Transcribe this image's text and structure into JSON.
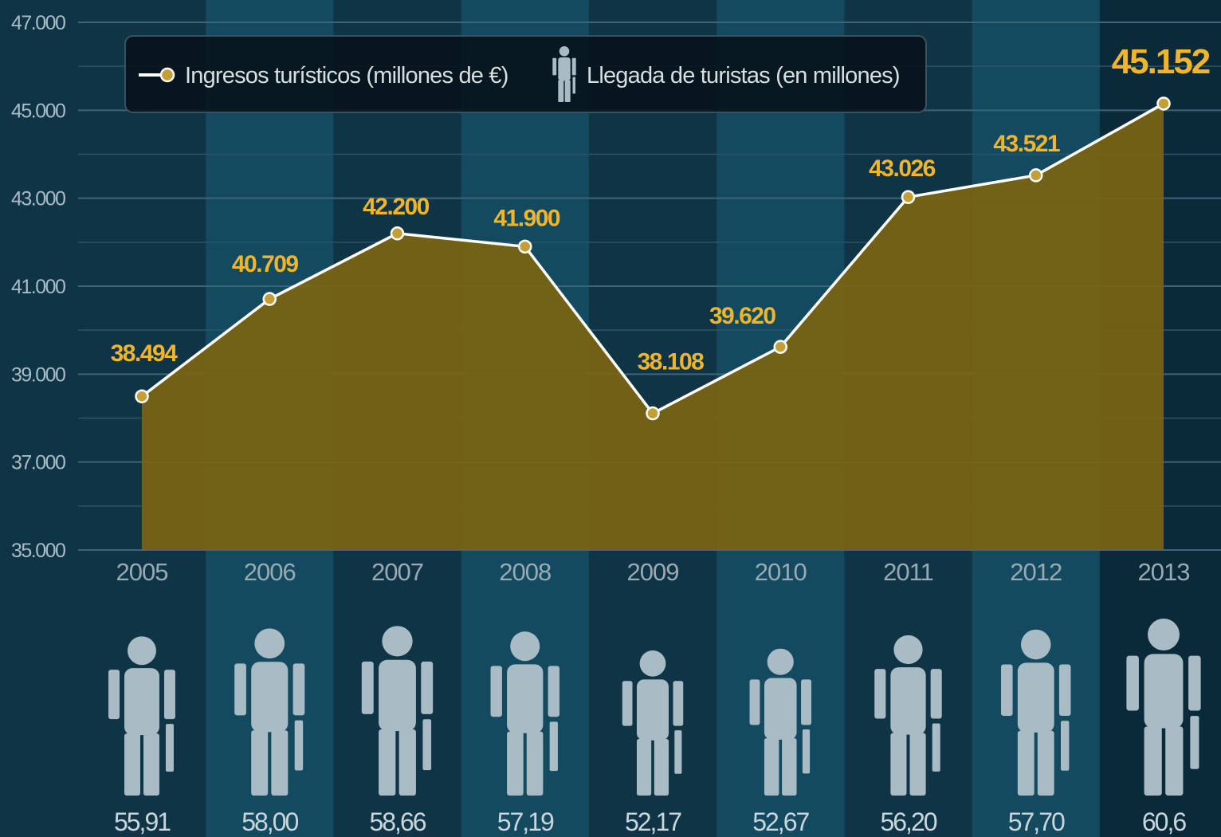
{
  "chart_data": {
    "type": "area",
    "categories": [
      "2005",
      "2006",
      "2007",
      "2008",
      "2009",
      "2010",
      "2011",
      "2012",
      "2013"
    ],
    "series": [
      {
        "name": "Ingresos turísticos (millones de €)",
        "values": [
          38494,
          40709,
          42200,
          41900,
          38108,
          39620,
          43026,
          43521,
          45152
        ],
        "value_labels": [
          "38.494",
          "40.709",
          "42.200",
          "41.900",
          "38.108",
          "39.620",
          "43.026",
          "43.521",
          "45.152"
        ]
      },
      {
        "name": "Llegada de turistas (en millones)",
        "values": [
          55.91,
          58.0,
          58.66,
          57.19,
          52.17,
          52.67,
          56.2,
          57.7,
          60.6
        ],
        "value_labels": [
          "55,91",
          "58,00",
          "58,66",
          "57,19",
          "52,17",
          "52,67",
          "56,20",
          "57,70",
          "60,6"
        ]
      }
    ],
    "yticks": [
      "35.000",
      "37.000",
      "39.000",
      "41.000",
      "43.000",
      "45.000",
      "47.000"
    ],
    "ylim": [
      35000,
      47000
    ],
    "legend": "top",
    "grid": true,
    "highlight_category": "2013"
  },
  "colors": {
    "background": "#0f3446",
    "band_alt": "#134a60",
    "area_fill": "#7a6412",
    "line": "#ffffff",
    "marker": "#c49f35",
    "value_label": "#f0b52a",
    "person_icon": "#a9bcc6"
  },
  "legend_icons": {
    "line_marker": "line-with-dot-icon",
    "person": "person-icon"
  }
}
